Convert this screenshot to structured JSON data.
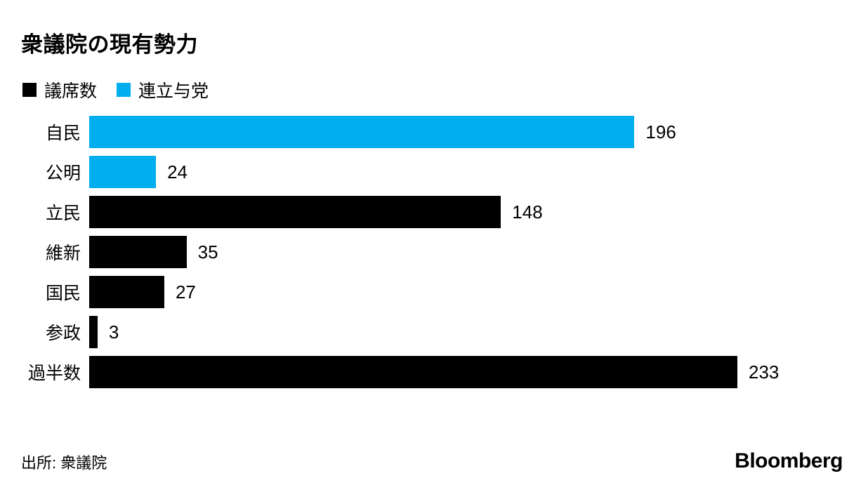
{
  "chart_data": {
    "type": "bar",
    "orientation": "horizontal",
    "title": "衆議院の現有勢力",
    "legend": [
      {
        "label": "議席数",
        "color": "#000000"
      },
      {
        "label": "連立与党",
        "color": "#00adef"
      }
    ],
    "categories": [
      "自民",
      "公明",
      "立民",
      "維新",
      "国民",
      "参政",
      "過半数"
    ],
    "values": [
      196,
      24,
      148,
      35,
      27,
      3,
      233
    ],
    "bar_colors": [
      "#00adef",
      "#00adef",
      "#000000",
      "#000000",
      "#000000",
      "#000000",
      "#000000"
    ],
    "xlim": [
      0,
      233
    ],
    "grid": false,
    "legend_position": "top-left",
    "source": "出所: 衆議院",
    "brand": "Bloomberg"
  },
  "colors": {
    "coalition_blue": "#00adef",
    "seats_black": "#000000",
    "background": "#ffffff"
  }
}
